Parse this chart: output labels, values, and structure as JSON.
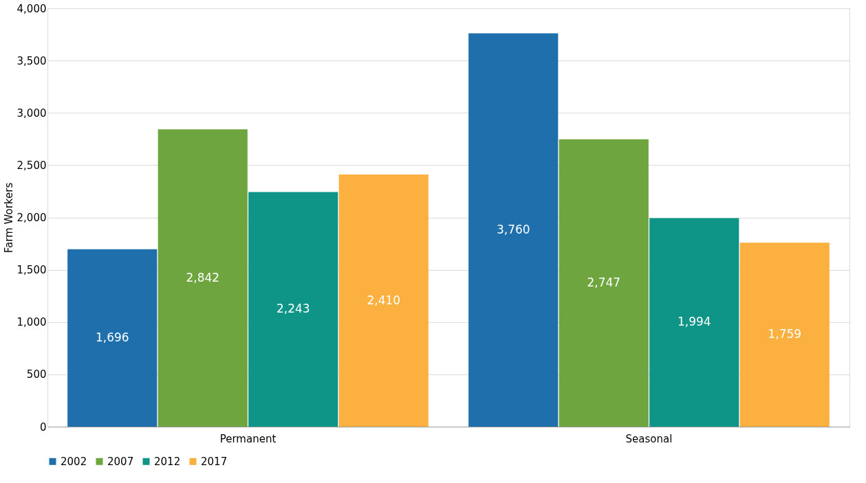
{
  "chart_data": {
    "type": "bar",
    "ylabel": "Farm Workers",
    "categories": [
      "Permanent",
      "Seasonal"
    ],
    "series": [
      {
        "name": "2002",
        "color": "#1f6fad",
        "values": [
          1696,
          3760
        ],
        "value_labels": [
          "1,696",
          "3,760"
        ]
      },
      {
        "name": "2007",
        "color": "#6fa53f",
        "values": [
          2842,
          2747
        ],
        "value_labels": [
          "2,842",
          "2,747"
        ]
      },
      {
        "name": "2012",
        "color": "#0f9488",
        "values": [
          2243,
          1994
        ],
        "value_labels": [
          "2,243",
          "1,994"
        ]
      },
      {
        "name": "2017",
        "color": "#fbb040",
        "values": [
          2410,
          1759
        ],
        "value_labels": [
          "2,410",
          "1,759"
        ]
      }
    ],
    "ylim": [
      0,
      4000
    ],
    "yticks": [
      0,
      {
        "value": 500,
        "label": "500"
      },
      {
        "value": 1000,
        "label": "1,000"
      },
      {
        "value": 1500,
        "label": "1,500"
      },
      {
        "value": 2000,
        "label": "2,000"
      },
      {
        "value": 2500,
        "label": "2,500"
      },
      {
        "value": 3000,
        "label": "3,000"
      },
      {
        "value": 3500,
        "label": "3,500"
      },
      {
        "value": 4000,
        "label": "4,000"
      }
    ],
    "grid": "y",
    "legend": "bottom"
  }
}
